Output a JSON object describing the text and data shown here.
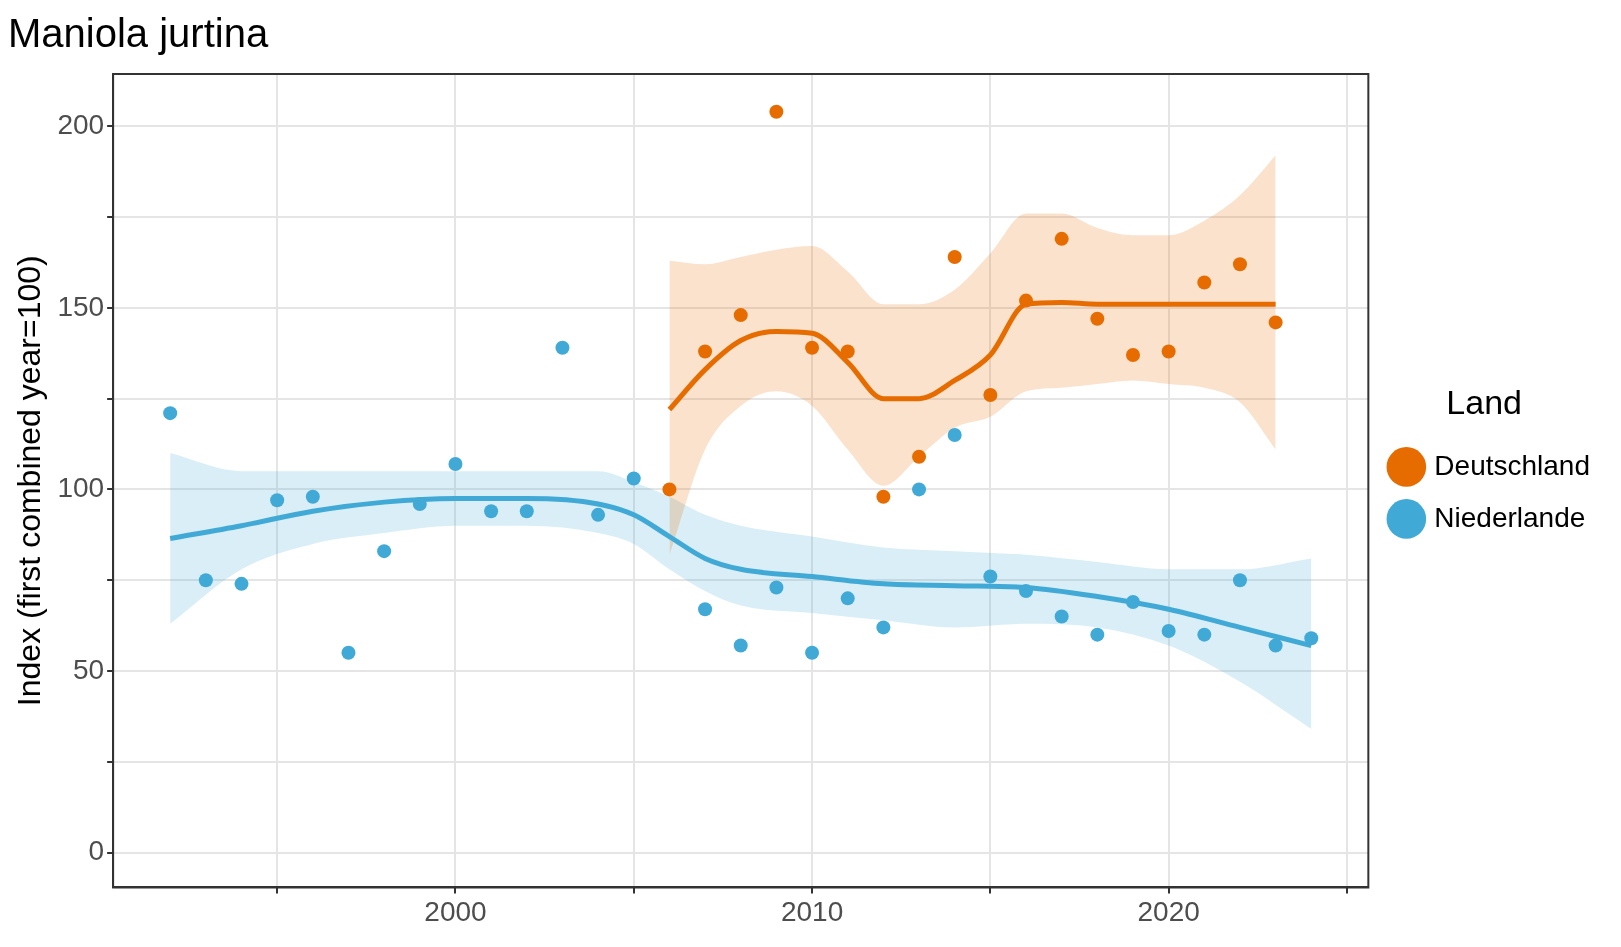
{
  "chart_data": {
    "type": "scatter",
    "title": "Maniola jurtina",
    "ylabel": "Index (first combined year=100)",
    "legend_title": "Land",
    "legend": "right",
    "grid": true,
    "line_style": "solid",
    "xlim": [
      1990.4,
      2025.6
    ],
    "xticks": [
      {
        "value": 1995,
        "label": null
      },
      2000,
      {
        "value": 2005,
        "label": null
      },
      2010,
      {
        "value": 2015,
        "label": null
      },
      2020,
      {
        "value": 2025,
        "label": null
      }
    ],
    "ylim": [
      -9.6,
      214.4
    ],
    "yticks": [
      0,
      {
        "value": 25,
        "label": null
      },
      50,
      {
        "value": 75,
        "label": null
      },
      100,
      {
        "value": 125,
        "label": null
      },
      150,
      {
        "value": 175,
        "label": null
      },
      200
    ],
    "series": [
      {
        "name": "Deutschland",
        "color": "#e66c00",
        "marker": "circle",
        "x": [
          2006,
          2007,
          2008,
          2009,
          2010,
          2011,
          2012,
          2013,
          2014,
          2015,
          2016,
          2017,
          2018,
          2019,
          2020,
          2021,
          2022,
          2023
        ],
        "values": [
          100,
          138,
          148,
          204,
          139,
          138,
          98,
          109,
          164,
          126,
          152,
          169,
          147,
          137,
          138,
          157,
          162,
          146
        ]
      },
      {
        "name": "Niederlande",
        "color": "#41a9d6",
        "marker": "circle",
        "x": [
          1992,
          1993,
          1994,
          1995,
          1996,
          1997,
          1998,
          1999,
          2000,
          2001,
          2002,
          2003,
          2004,
          2005,
          2006,
          2007,
          2008,
          2009,
          2010,
          2011,
          2012,
          2013,
          2014,
          2015,
          2016,
          2017,
          2018,
          2019,
          2020,
          2021,
          2022,
          2023,
          2024
        ],
        "values": [
          121,
          75,
          74,
          97,
          98,
          55,
          83,
          96,
          107,
          94,
          94,
          139,
          93,
          103,
          null,
          67,
          57,
          73,
          55,
          70,
          62,
          100,
          115,
          76,
          72,
          65,
          60,
          69,
          61,
          60,
          75,
          57,
          59
        ]
      },
      {
        "type": "line",
        "color": "#e66c00",
        "marker": "none",
        "x": [
          2006,
          2007,
          2008,
          2009,
          2010,
          2011,
          2012,
          2013,
          2014,
          2015,
          2016,
          2017,
          2018,
          2019,
          2020,
          2021,
          2022,
          2023
        ],
        "values": [
          122,
          133,
          141,
          143.5,
          143,
          135,
          125,
          125,
          130,
          137,
          151,
          151.5,
          151,
          151,
          151,
          151,
          151,
          151
        ],
        "lower": [
          82,
          111,
          123,
          127,
          123,
          111,
          101,
          109,
          117,
          120,
          127,
          128,
          129,
          130,
          129,
          128,
          124,
          111
        ],
        "upper": [
          163,
          162,
          164,
          166,
          167,
          160,
          151,
          151,
          155,
          165,
          176,
          176,
          172,
          170,
          170,
          174,
          181,
          192
        ]
      },
      {
        "type": "line",
        "color": "#41a9d6",
        "marker": "none",
        "x": [
          1992,
          1994,
          1996,
          1998,
          2000,
          2002,
          2004,
          2005,
          2006,
          2007,
          2008,
          2010,
          2012,
          2014,
          2016,
          2018,
          2020,
          2022,
          2024
        ],
        "values": [
          86.5,
          90,
          94,
          96.5,
          97.5,
          97.5,
          96,
          93,
          87,
          81,
          78,
          76,
          74,
          73.5,
          73,
          70.5,
          67,
          62,
          57
        ],
        "lower": [
          63,
          78,
          85,
          88,
          90,
          90,
          88,
          85,
          78,
          72,
          68,
          66,
          64,
          62,
          63,
          62,
          57,
          47,
          34
        ],
        "upper": [
          110,
          105,
          105,
          105,
          105,
          105,
          105,
          102,
          98,
          93,
          90,
          87,
          84,
          83,
          82,
          80,
          78,
          78,
          81
        ]
      }
    ]
  }
}
